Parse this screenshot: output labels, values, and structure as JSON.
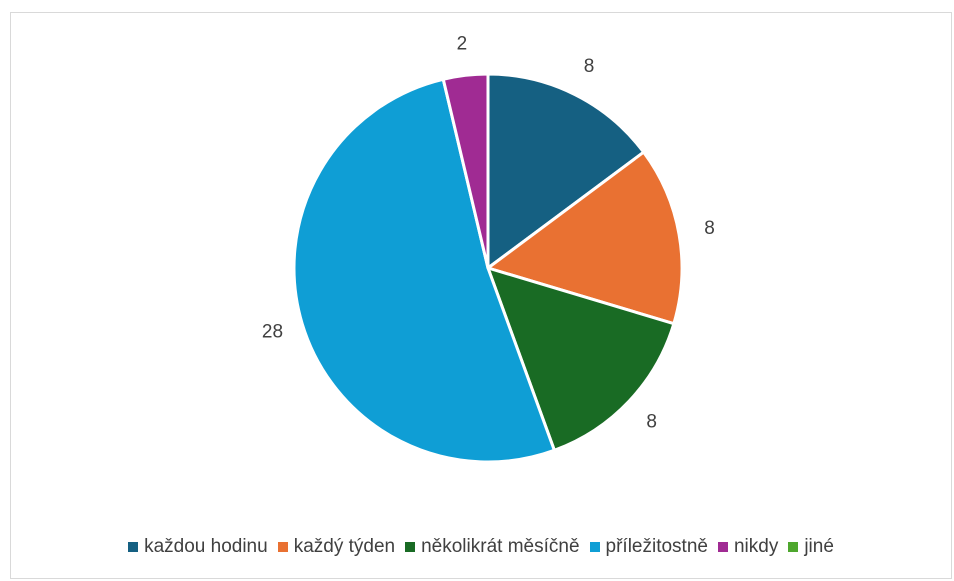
{
  "chart_data": {
    "type": "pie",
    "categories": [
      "každou hodinu",
      "každý týden",
      "několikrát měsíčně",
      "příležitostně",
      "nikdy",
      "jiné"
    ],
    "values": [
      8,
      8,
      8,
      28,
      2,
      0
    ],
    "colors": [
      "#156082",
      "#E97132",
      "#196B24",
      "#0F9ED5",
      "#A02B93",
      "#4EA72E"
    ],
    "legend": "bottom"
  }
}
